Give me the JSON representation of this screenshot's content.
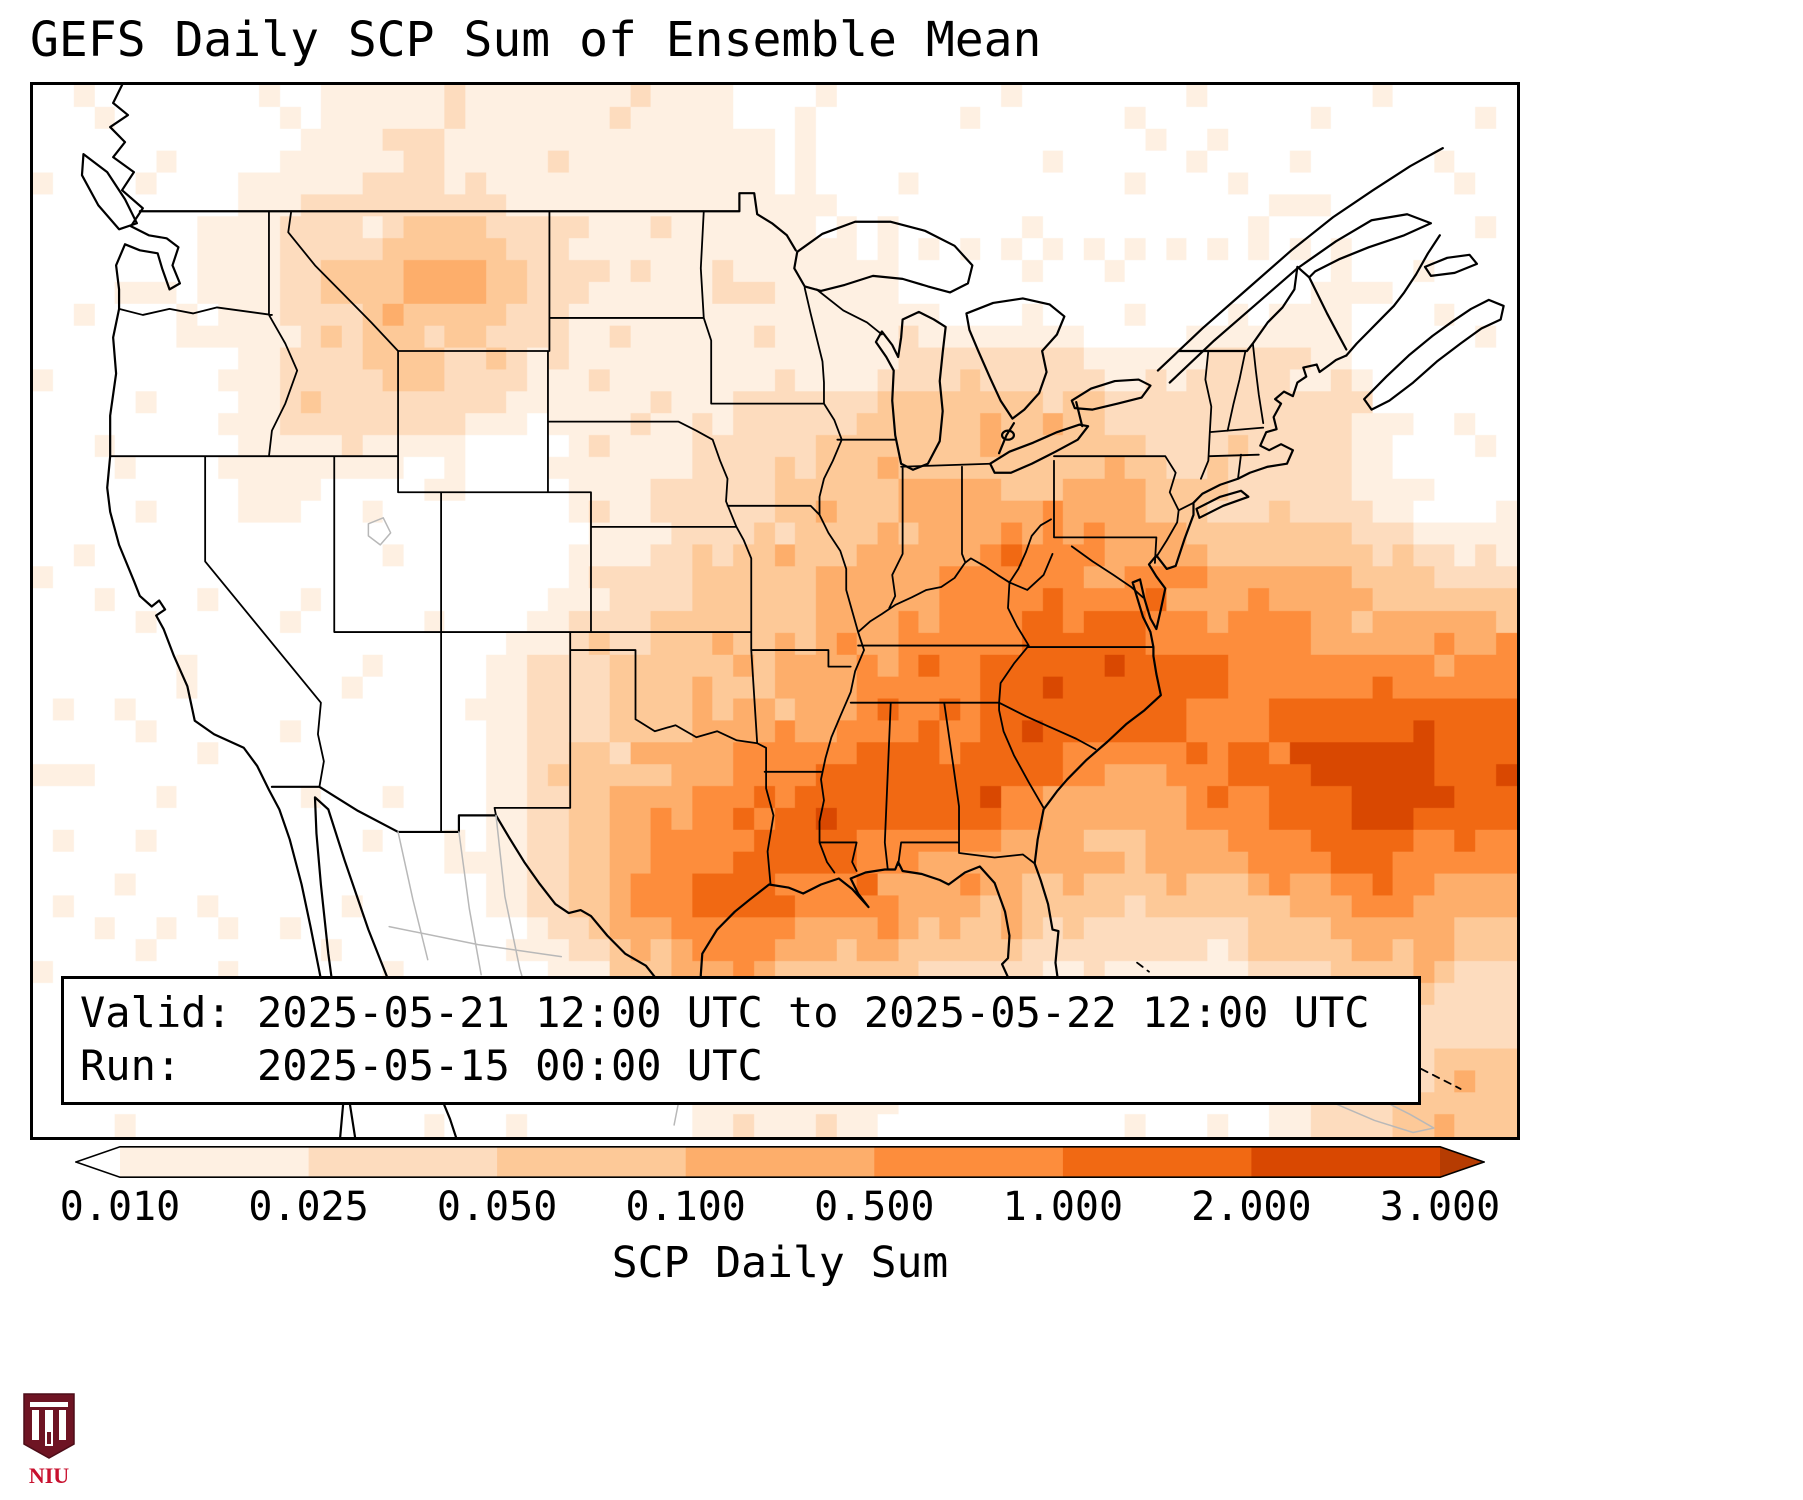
{
  "title": "GEFS Daily SCP Sum of Ensemble Mean",
  "info_box": {
    "line1": "Valid: 2025-05-21 12:00 UTC to 2025-05-22 12:00 UTC",
    "line2": "Run:   2025-05-15 00:00 UTC"
  },
  "logo": {
    "text": "NIU"
  },
  "chart_data": {
    "type": "heatmap",
    "title": "GEFS Daily SCP Sum of Ensemble Mean",
    "colorbar_label": "SCP Daily Sum",
    "valid": "2025-05-21 12:00 UTC to 2025-05-22 12:00 UTC",
    "run": "2025-05-15 00:00 UTC",
    "region": "CONUS",
    "boundaries": [
      0.01,
      0.025,
      0.05,
      0.1,
      0.5,
      1.0,
      2.0,
      3.0
    ],
    "tick_labels": [
      "0.010",
      "0.025",
      "0.050",
      "0.100",
      "0.500",
      "1.000",
      "2.000",
      "3.000"
    ],
    "level_colors": [
      "#ffffff",
      "#fef0e2",
      "#fddcbe",
      "#fdc998",
      "#fdae6b",
      "#fd8d3c",
      "#f16913",
      "#d94801",
      "#a63603"
    ],
    "colorbar": {
      "under_color": "#ffffff",
      "segment_colors": [
        "#fef0e2",
        "#fddcbe",
        "#fdc998",
        "#fdae6b",
        "#fd8d3c",
        "#f16913",
        "#d94801"
      ],
      "over_color": "#b63c02"
    },
    "grid": {
      "description": "SCP daily-sum level index per cell (0 = <0.01, 1 = 0.01-0.025, 2 = 0.025-0.05, 3 = 0.05-0.1, 4 = 0.1-0.5, 5 = 0.5-1, 6 = 1-2, 7 = 2-3, 8 = >3); 36 columns west to east, 24 rows north to south over the plotted CONUS domain",
      "rows": [
        "000000011111111110000000000000000000",
        "000000111211111111000000000000000000",
        "000001112221111111100000000000000000",
        "000011222332211111110000000000000000",
        "000011233443221111111000000000000000",
        "000011223332211111111100000001110000",
        "000001223322111111111222221122210000",
        "000001222221111112223333332222221000",
        "000001111000011122233333333222221000",
        "000001100000011222333444444332221000",
        "000000000000011223334445554433332211",
        "000000000000012233344455555544443322",
        "000000000000122333344555666555544444",
        "000000000001223333445556666665555555",
        "000000000001223344445556666655666666",
        "000000000001233445566666655556677766",
        "000000000001234455666666444455667766",
        "000000000001234556665554433445566555",
        "000000000001235566555444333333445544",
        "000000000000124455444333222222334433",
        "000000000000013344333222111111223322",
        "000000000000001222221111110001112222",
        "000000000000000111111110000000112233",
        "000000000000000011111000000000122333"
      ]
    }
  }
}
